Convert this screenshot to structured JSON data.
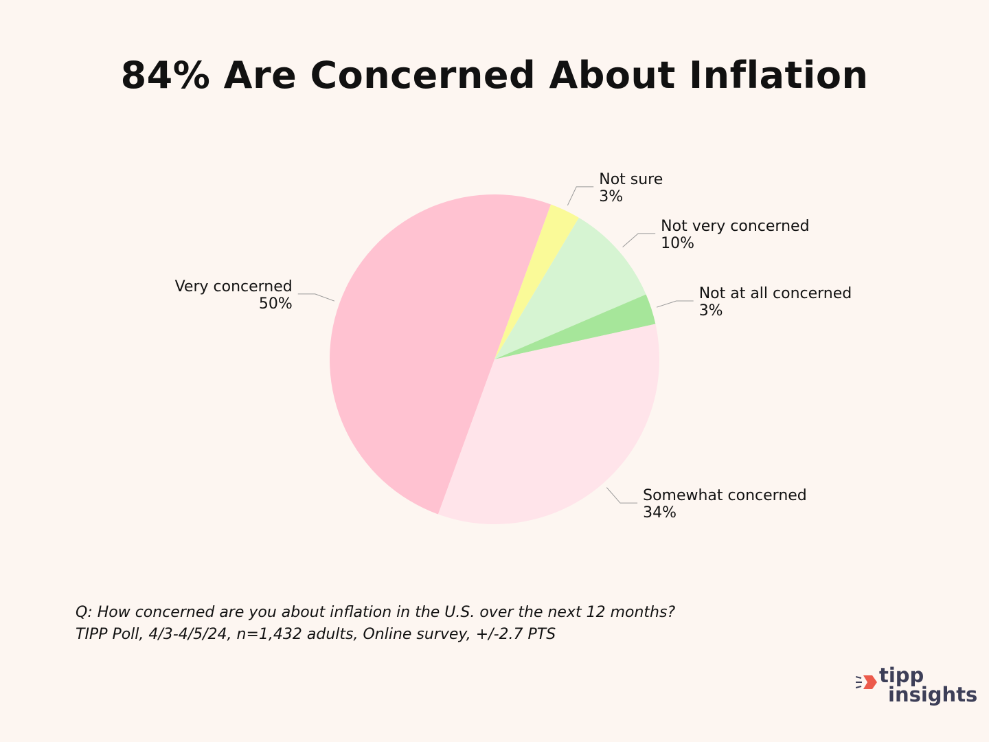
{
  "colors": {
    "background": "#fdf6f1",
    "very_concerned": "#ffc2d1",
    "not_sure": "#fafa98",
    "not_very_concerned": "#d6f4d2",
    "not_at_all_concerned": "#a6e69a",
    "somewhat_concerned": "#ffe4ea",
    "logo_accent": "#ec5a4b",
    "logo_text": "#3d3f58"
  },
  "chart_data": {
    "type": "pie",
    "title": "84% Are Concerned About Inflation",
    "slices": [
      {
        "label": "Very concerned",
        "value": 50,
        "value_label": "50%",
        "color": "#ffc2d1"
      },
      {
        "label": "Not sure",
        "value": 3,
        "value_label": "3%",
        "color": "#fafa98"
      },
      {
        "label": "Not very concerned",
        "value": 10,
        "value_label": "10%",
        "color": "#d6f4d2"
      },
      {
        "label": "Not at all concerned",
        "value": 3,
        "value_label": "3%",
        "color": "#a6e69a"
      },
      {
        "label": "Somewhat concerned",
        "value": 34,
        "value_label": "34%",
        "color": "#ffe4ea"
      }
    ]
  },
  "footnote": {
    "question": "Q:  How concerned are you about inflation in the U.S. over the next 12 months?",
    "source": "TIPP Poll, 4/3-4/5/24, n=1,432 adults, Online survey, +/-2.7 PTS"
  },
  "logo": {
    "line1": "tipp",
    "line2": "insights",
    "mark_icon": "tipp-insights-logo-mark-icon"
  }
}
